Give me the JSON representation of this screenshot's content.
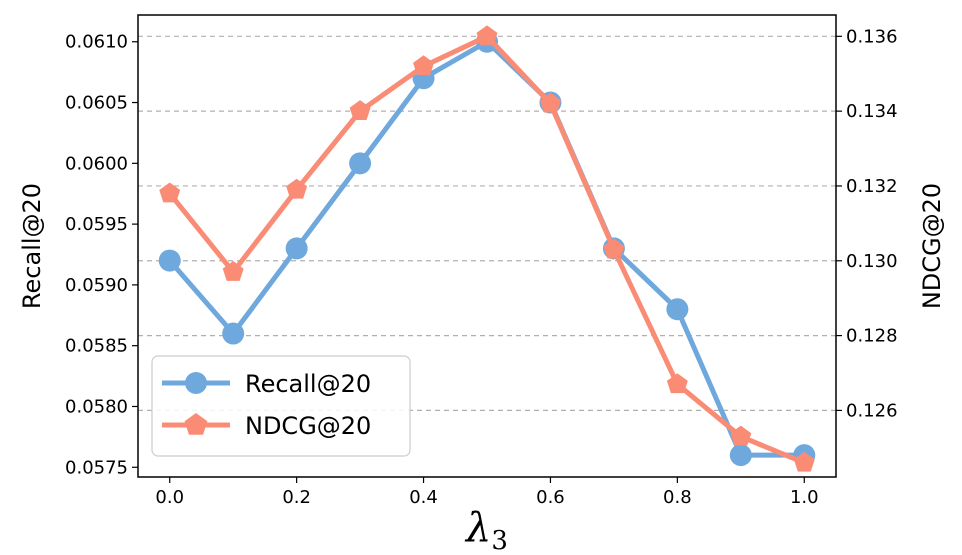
{
  "chart_data": {
    "type": "line",
    "x": [
      0.0,
      0.1,
      0.2,
      0.3,
      0.4,
      0.5,
      0.6,
      0.7,
      0.8,
      0.9,
      1.0
    ],
    "x_tick_labels": [
      "0.0",
      "0.2",
      "0.4",
      "0.6",
      "0.8",
      "1.0"
    ],
    "x_ticks": [
      0.0,
      0.2,
      0.4,
      0.6,
      0.8,
      1.0
    ],
    "xlabel_main": "λ",
    "xlabel_sub": "3",
    "xlim": [
      -0.05,
      1.05
    ],
    "series": [
      {
        "name": "Recall@20",
        "axis": "left",
        "color": "#6fa8dc",
        "marker": "circle",
        "values": [
          0.0592,
          0.0586,
          0.0593,
          0.06,
          0.0607,
          0.061,
          0.0605,
          0.0593,
          0.0588,
          0.0576,
          0.0576
        ]
      },
      {
        "name": "NDCG@20",
        "axis": "right",
        "color": "#fa8c76",
        "marker": "pentagon",
        "values": [
          0.1318,
          0.1297,
          0.1319,
          0.134,
          0.1352,
          0.136,
          0.1342,
          0.1303,
          0.1267,
          0.1253,
          0.1246
        ]
      }
    ],
    "left_axis": {
      "label": "Recall@20",
      "ylim": [
        0.05742,
        0.06122
      ],
      "ticks": [
        0.0575,
        0.058,
        0.0585,
        0.059,
        0.0595,
        0.06,
        0.0605,
        0.061
      ],
      "tick_labels": [
        "0.0575",
        "0.0580",
        "0.0585",
        "0.0590",
        "0.0595",
        "0.0600",
        "0.0605",
        "0.0610"
      ]
    },
    "right_axis": {
      "label": "NDCG@20",
      "ylim": [
        0.12422,
        0.13657
      ],
      "ticks": [
        0.126,
        0.128,
        0.13,
        0.132,
        0.134,
        0.136
      ],
      "tick_labels": [
        "0.126",
        "0.128",
        "0.130",
        "0.132",
        "0.134",
        "0.136"
      ]
    },
    "grid": "horizontal dashed at right-axis ticks",
    "legend_position": "bottom-left"
  }
}
